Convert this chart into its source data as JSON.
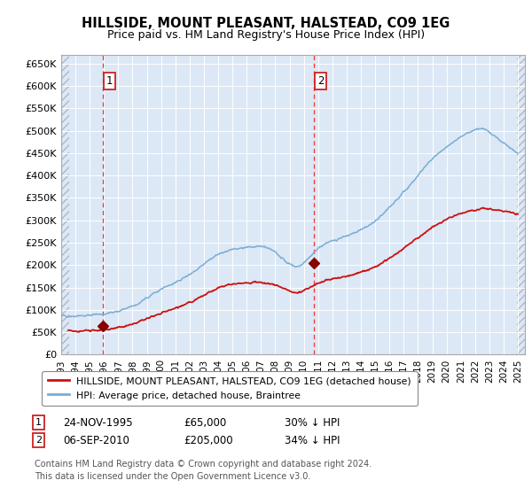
{
  "title": "HILLSIDE, MOUNT PLEASANT, HALSTEAD, CO9 1EG",
  "subtitle": "Price paid vs. HM Land Registry's House Price Index (HPI)",
  "ylabel_ticks": [
    "£0",
    "£50K",
    "£100K",
    "£150K",
    "£200K",
    "£250K",
    "£300K",
    "£350K",
    "£400K",
    "£450K",
    "£500K",
    "£550K",
    "£600K",
    "£650K"
  ],
  "ytick_vals": [
    0,
    50000,
    100000,
    150000,
    200000,
    250000,
    300000,
    350000,
    400000,
    450000,
    500000,
    550000,
    600000,
    650000
  ],
  "ylim": [
    0,
    670000
  ],
  "xlim_start": 1993.0,
  "xlim_end": 2025.5,
  "hpi_color": "#7aadd4",
  "price_color": "#cc1111",
  "marker_color": "#880000",
  "dashed_line_color": "#ee3333",
  "annotation_box_color": "#cc2222",
  "bg_color": "#dce8f5",
  "grid_color": "#ffffff",
  "sale1_x": 1995.9,
  "sale1_y": 65000,
  "sale1_label": "1",
  "sale2_x": 2010.68,
  "sale2_y": 205000,
  "sale2_label": "2",
  "legend_label1": "HILLSIDE, MOUNT PLEASANT, HALSTEAD, CO9 1EG (detached house)",
  "legend_label2": "HPI: Average price, detached house, Braintree",
  "footnote": "Contains HM Land Registry data © Crown copyright and database right 2024.\nThis data is licensed under the Open Government Licence v3.0."
}
